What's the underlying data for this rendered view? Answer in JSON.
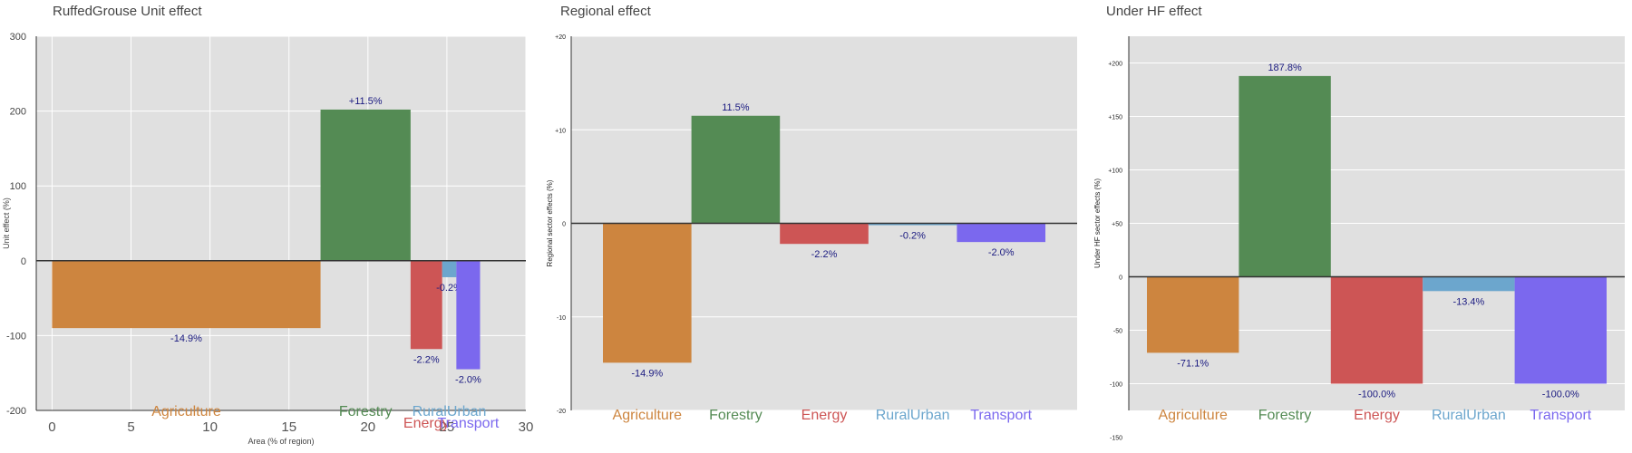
{
  "chart_data": [
    {
      "type": "bar",
      "title": "RuffedGrouse Unit effect",
      "xlabel": "Area (% of region)",
      "ylabel": "Unit effect (%)",
      "xlim": [
        -1,
        30
      ],
      "ylim": [
        -200,
        300
      ],
      "yticks": [
        -200,
        -100,
        0,
        100,
        200,
        300
      ],
      "ytick_labels": [
        "-200",
        "-100",
        "0",
        "100",
        "200",
        "300"
      ],
      "xticks": [
        0,
        5,
        10,
        15,
        20,
        25,
        30
      ],
      "xtick_labels": [
        "0",
        "5",
        "10",
        "15",
        "20",
        "25",
        "30"
      ],
      "grid": true,
      "bars": [
        {
          "category": "Agriculture",
          "x_start": 0,
          "x_end": 17,
          "value": -90,
          "label": "-14.9%",
          "color": "#cd853f"
        },
        {
          "category": "Forestry",
          "x_start": 17,
          "x_end": 22.7,
          "value": 202,
          "label": "+11.5%",
          "color": "#548b54"
        },
        {
          "category": "Energy",
          "x_start": 22.7,
          "x_end": 24.7,
          "value": -118,
          "label": "-2.2%",
          "color": "#cd5555"
        },
        {
          "category": "RuralUrban",
          "x_start": 24.7,
          "x_end": 25.6,
          "value": -22,
          "label": "-0.2%",
          "color": "#6ca6cd"
        },
        {
          "category": "Transport",
          "x_start": 25.6,
          "x_end": 27.1,
          "value": -145,
          "label": "-2.0%",
          "color": "#7b68ee"
        }
      ]
    },
    {
      "type": "bar",
      "title": "Regional effect",
      "ylabel": "Regional sector effects (%)",
      "ylim": [
        -20,
        20
      ],
      "yticks": [
        -20,
        -10,
        0,
        10,
        20
      ],
      "ytick_labels": [
        "-20",
        "-10",
        "0",
        "+10",
        "+20"
      ],
      "grid": true,
      "categories": [
        "Agriculture",
        "Forestry",
        "Energy",
        "RuralUrban",
        "Transport"
      ],
      "values": [
        -14.9,
        11.5,
        -2.2,
        -0.2,
        -2.0
      ],
      "labels": [
        "-14.9%",
        "11.5%",
        "-2.2%",
        "-0.2%",
        "-2.0%"
      ],
      "colors": [
        "#cd853f",
        "#548b54",
        "#cd5555",
        "#6ca6cd",
        "#7b68ee"
      ]
    },
    {
      "type": "bar",
      "title": "Under HF effect",
      "ylabel": "Under HF sector effects (%)",
      "ylim": [
        -125,
        225
      ],
      "yticks": [
        -150,
        -100,
        -50,
        0,
        50,
        100,
        150,
        200
      ],
      "ytick_labels": [
        "-150",
        "-100",
        "-50",
        "0",
        "+50",
        "+100",
        "+150",
        "+200"
      ],
      "grid": true,
      "categories": [
        "Agriculture",
        "Forestry",
        "Energy",
        "RuralUrban",
        "Transport"
      ],
      "values": [
        -71.1,
        187.8,
        -100.0,
        -13.4,
        -100.0
      ],
      "labels": [
        "-71.1%",
        "187.8%",
        "-100.0%",
        "-13.4%",
        "-100.0%"
      ],
      "colors": [
        "#cd853f",
        "#548b54",
        "#cd5555",
        "#6ca6cd",
        "#7b68ee"
      ]
    }
  ]
}
